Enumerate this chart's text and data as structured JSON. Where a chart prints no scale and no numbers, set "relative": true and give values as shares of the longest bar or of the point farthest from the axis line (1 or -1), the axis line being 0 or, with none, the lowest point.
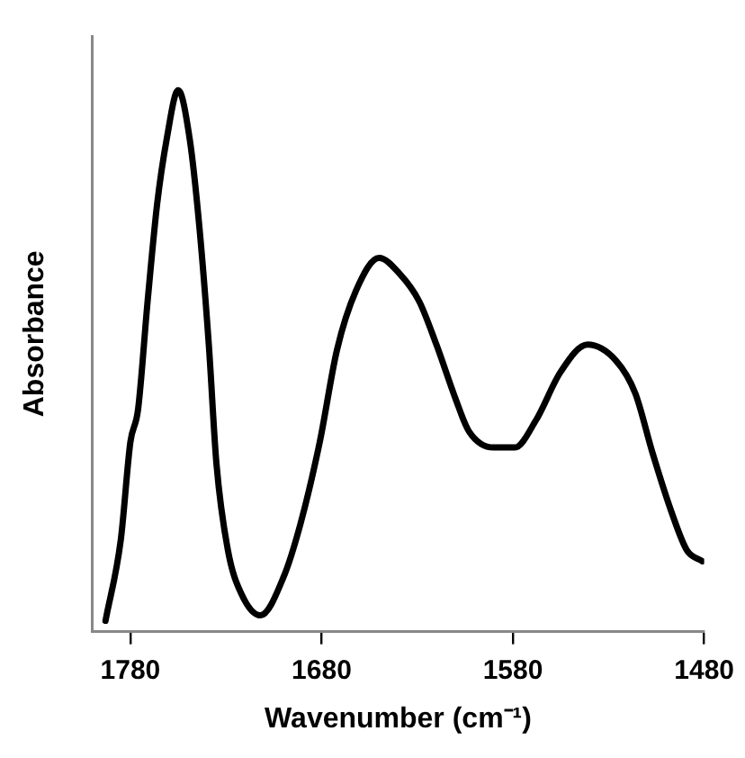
{
  "chart_data": {
    "type": "line",
    "relative": true,
    "xlabel": "Wavenumber (cm⁻¹)",
    "ylabel": "Absorbance",
    "xlim": [
      1800,
      1480
    ],
    "xticks": [
      1780,
      1680,
      1580,
      1480
    ],
    "legend": false,
    "marker": "none",
    "line_style": "solid",
    "series": [
      {
        "color": "#000000",
        "x": [
          1793,
          1785,
          1780,
          1776,
          1771,
          1766,
          1761,
          1755,
          1749,
          1744,
          1739,
          1735,
          1729,
          1722,
          1712,
          1700,
          1691,
          1681,
          1672,
          1662,
          1650,
          1639,
          1629,
          1620,
          1610,
          1603,
          1590,
          1579,
          1568,
          1555,
          1541,
          1526,
          1516,
          1507,
          1497,
          1489,
          1481
        ],
        "values": [
          0.02,
          0.17,
          0.35,
          0.41,
          0.61,
          0.79,
          0.91,
          1,
          0.91,
          0.75,
          0.53,
          0.31,
          0.15,
          0.07,
          0.03,
          0.1,
          0.2,
          0.35,
          0.52,
          0.63,
          0.69,
          0.66,
          0.61,
          0.53,
          0.43,
          0.37,
          0.34,
          0.34,
          0.39,
          0.48,
          0.53,
          0.5,
          0.44,
          0.33,
          0.22,
          0.15,
          0.13
        ]
      }
    ]
  }
}
